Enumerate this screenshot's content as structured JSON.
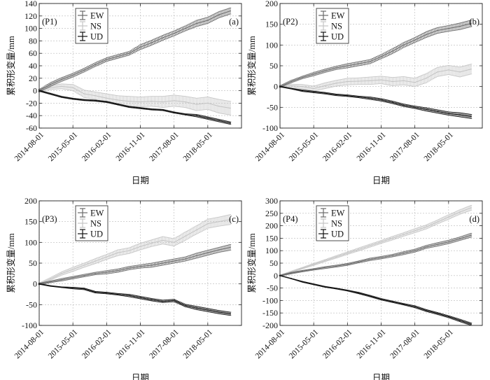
{
  "figure": {
    "x_dates": [
      "2014-08-01",
      "2014-11-01",
      "2015-02-01",
      "2015-05-01",
      "2015-08-01",
      "2015-11-01",
      "2016-02-01",
      "2016-05-01",
      "2016-08-01",
      "2016-11-01",
      "2017-02-01",
      "2017-05-01",
      "2017-08-01",
      "2017-11-01",
      "2018-02-01",
      "2018-05-01",
      "2018-08-01",
      "2018-11-01"
    ],
    "x_tick_labels": [
      "2014-08-01",
      "2015-05-01",
      "2016-02-01",
      "2016-11-01",
      "2017-08-01",
      "2018-05-01"
    ],
    "series_colors": {
      "EW": "#6a6a6a",
      "NS": "#c4c4c4",
      "UD": "#111111"
    }
  },
  "chart_data": [
    {
      "type": "line",
      "panel_tag": "(P1)",
      "corner_label": "(a)",
      "xlabel": "日期",
      "ylabel": "累积形变量/mm",
      "ylim": [
        -60,
        140
      ],
      "yticks": [
        -60,
        -40,
        -20,
        0,
        20,
        40,
        60,
        80,
        100,
        120,
        140
      ],
      "grid": true,
      "legend": "top-left",
      "x": [
        "2014-08-01",
        "2014-11-01",
        "2015-02-01",
        "2015-05-01",
        "2015-08-01",
        "2015-11-01",
        "2016-02-01",
        "2016-05-01",
        "2016-08-01",
        "2016-11-01",
        "2017-02-01",
        "2017-05-01",
        "2017-08-01",
        "2017-11-01",
        "2018-02-01",
        "2018-05-01",
        "2018-08-01",
        "2018-11-01"
      ],
      "series": [
        {
          "name": "EW",
          "values": [
            0,
            10,
            18,
            25,
            33,
            42,
            50,
            55,
            60,
            70,
            77,
            85,
            92,
            100,
            108,
            113,
            122,
            128
          ],
          "err": [
            2,
            3,
            3,
            3,
            3,
            3,
            3,
            3,
            3,
            4,
            4,
            4,
            4,
            4,
            5,
            5,
            5,
            5
          ]
        },
        {
          "name": "NS",
          "values": [
            0,
            5,
            7,
            5,
            -5,
            -8,
            -12,
            -15,
            -17,
            -18,
            -17,
            -18,
            -16,
            -18,
            -22,
            -20,
            -25,
            -28
          ],
          "err": [
            2,
            3,
            4,
            5,
            6,
            6,
            7,
            7,
            8,
            8,
            8,
            9,
            9,
            9,
            10,
            10,
            11,
            11
          ]
        },
        {
          "name": "UD",
          "values": [
            0,
            -5,
            -10,
            -13,
            -15,
            -16,
            -18,
            -22,
            -26,
            -28,
            -30,
            -31,
            -35,
            -38,
            -40,
            -44,
            -48,
            -52
          ],
          "err": [
            1,
            1,
            1,
            1,
            1,
            1,
            1,
            1,
            1,
            1,
            1,
            1,
            1,
            1,
            2,
            2,
            2,
            2
          ]
        }
      ]
    },
    {
      "type": "line",
      "panel_tag": "(P2)",
      "corner_label": "(b)",
      "xlabel": "日期",
      "ylabel": "累积形变量/mm",
      "ylim": [
        -100,
        200
      ],
      "yticks": [
        -100,
        -50,
        0,
        50,
        100,
        150,
        200
      ],
      "grid": true,
      "legend": "top-left",
      "x": [
        "2014-08-01",
        "2014-11-01",
        "2015-02-01",
        "2015-05-01",
        "2015-08-01",
        "2015-11-01",
        "2016-02-01",
        "2016-05-01",
        "2016-08-01",
        "2016-11-01",
        "2017-02-01",
        "2017-05-01",
        "2017-08-01",
        "2017-11-01",
        "2018-02-01",
        "2018-05-01",
        "2018-08-01",
        "2018-11-01"
      ],
      "series": [
        {
          "name": "EW",
          "values": [
            0,
            12,
            22,
            30,
            38,
            45,
            50,
            55,
            60,
            72,
            85,
            100,
            112,
            125,
            135,
            140,
            145,
            152
          ],
          "err": [
            2,
            3,
            3,
            4,
            4,
            4,
            5,
            5,
            5,
            5,
            6,
            6,
            6,
            7,
            7,
            7,
            8,
            8
          ]
        },
        {
          "name": "NS",
          "values": [
            0,
            2,
            0,
            -5,
            2,
            8,
            12,
            13,
            14,
            16,
            12,
            14,
            10,
            20,
            35,
            40,
            35,
            42
          ],
          "err": [
            2,
            4,
            5,
            6,
            7,
            7,
            8,
            8,
            9,
            9,
            10,
            10,
            10,
            11,
            11,
            11,
            12,
            12
          ]
        },
        {
          "name": "UD",
          "values": [
            0,
            -5,
            -10,
            -13,
            -16,
            -20,
            -22,
            -25,
            -28,
            -32,
            -38,
            -45,
            -50,
            -55,
            -60,
            -65,
            -68,
            -72
          ],
          "err": [
            1,
            1,
            2,
            2,
            2,
            2,
            2,
            2,
            3,
            3,
            3,
            3,
            3,
            4,
            4,
            4,
            5,
            5
          ]
        }
      ]
    },
    {
      "type": "line",
      "panel_tag": "(P3)",
      "corner_label": "(c)",
      "xlabel": "日期",
      "ylabel": "累积形变量/mm",
      "ylim": [
        -100,
        200
      ],
      "yticks": [
        -100,
        -50,
        0,
        50,
        100,
        150,
        200
      ],
      "grid": true,
      "legend": "top-left",
      "x": [
        "2014-08-01",
        "2014-11-01",
        "2015-02-01",
        "2015-05-01",
        "2015-08-01",
        "2015-11-01",
        "2016-02-01",
        "2016-05-01",
        "2016-08-01",
        "2016-11-01",
        "2017-02-01",
        "2017-05-01",
        "2017-08-01",
        "2017-11-01",
        "2018-02-01",
        "2018-05-01",
        "2018-08-01",
        "2018-11-01"
      ],
      "series": [
        {
          "name": "EW",
          "values": [
            0,
            5,
            10,
            15,
            20,
            25,
            28,
            32,
            38,
            42,
            45,
            50,
            55,
            60,
            68,
            75,
            82,
            88
          ],
          "err": [
            2,
            2,
            3,
            3,
            3,
            3,
            4,
            4,
            4,
            4,
            5,
            5,
            5,
            5,
            6,
            6,
            6,
            7
          ]
        },
        {
          "name": "NS",
          "values": [
            0,
            12,
            25,
            35,
            45,
            55,
            65,
            75,
            80,
            90,
            98,
            105,
            100,
            115,
            130,
            145,
            150,
            155
          ],
          "err": [
            2,
            3,
            4,
            5,
            5,
            6,
            6,
            7,
            7,
            8,
            8,
            9,
            9,
            10,
            10,
            11,
            11,
            12
          ]
        },
        {
          "name": "UD",
          "values": [
            0,
            -5,
            -8,
            -10,
            -12,
            -20,
            -22,
            -25,
            -28,
            -33,
            -38,
            -42,
            -40,
            -52,
            -58,
            -63,
            -68,
            -72
          ],
          "err": [
            1,
            1,
            1,
            2,
            2,
            2,
            2,
            2,
            3,
            3,
            3,
            3,
            3,
            3,
            4,
            4,
            4,
            4
          ]
        }
      ]
    },
    {
      "type": "line",
      "panel_tag": "(P4)",
      "corner_label": "(d)",
      "xlabel": "日期",
      "ylabel": "累积形变量/mm",
      "ylim": [
        -200,
        300
      ],
      "yticks": [
        -200,
        -150,
        -100,
        -50,
        0,
        50,
        100,
        150,
        200,
        250,
        300
      ],
      "grid": true,
      "legend": "top-left",
      "x": [
        "2014-08-01",
        "2014-11-01",
        "2015-02-01",
        "2015-05-01",
        "2015-08-01",
        "2015-11-01",
        "2016-02-01",
        "2016-05-01",
        "2016-08-01",
        "2016-11-01",
        "2017-02-01",
        "2017-05-01",
        "2017-08-01",
        "2017-11-01",
        "2018-02-01",
        "2018-05-01",
        "2018-08-01",
        "2018-11-01"
      ],
      "series": [
        {
          "name": "EW",
          "values": [
            0,
            10,
            18,
            25,
            32,
            38,
            45,
            55,
            65,
            72,
            80,
            90,
            100,
            115,
            125,
            135,
            148,
            162
          ],
          "err": [
            2,
            3,
            3,
            3,
            4,
            4,
            4,
            4,
            5,
            5,
            5,
            6,
            6,
            6,
            7,
            7,
            7,
            8
          ]
        },
        {
          "name": "NS",
          "values": [
            0,
            15,
            30,
            45,
            60,
            75,
            90,
            105,
            120,
            135,
            150,
            165,
            180,
            195,
            215,
            235,
            255,
            272
          ],
          "err": [
            2,
            3,
            3,
            4,
            4,
            5,
            5,
            6,
            6,
            6,
            7,
            7,
            8,
            8,
            8,
            9,
            9,
            10
          ]
        },
        {
          "name": "UD",
          "values": [
            0,
            -12,
            -25,
            -35,
            -45,
            -52,
            -60,
            -70,
            -82,
            -95,
            -105,
            -115,
            -125,
            -140,
            -152,
            -165,
            -180,
            -195
          ],
          "err": [
            1,
            1,
            2,
            2,
            2,
            2,
            2,
            3,
            3,
            3,
            3,
            3,
            4,
            4,
            4,
            4,
            5,
            5
          ]
        }
      ]
    }
  ]
}
